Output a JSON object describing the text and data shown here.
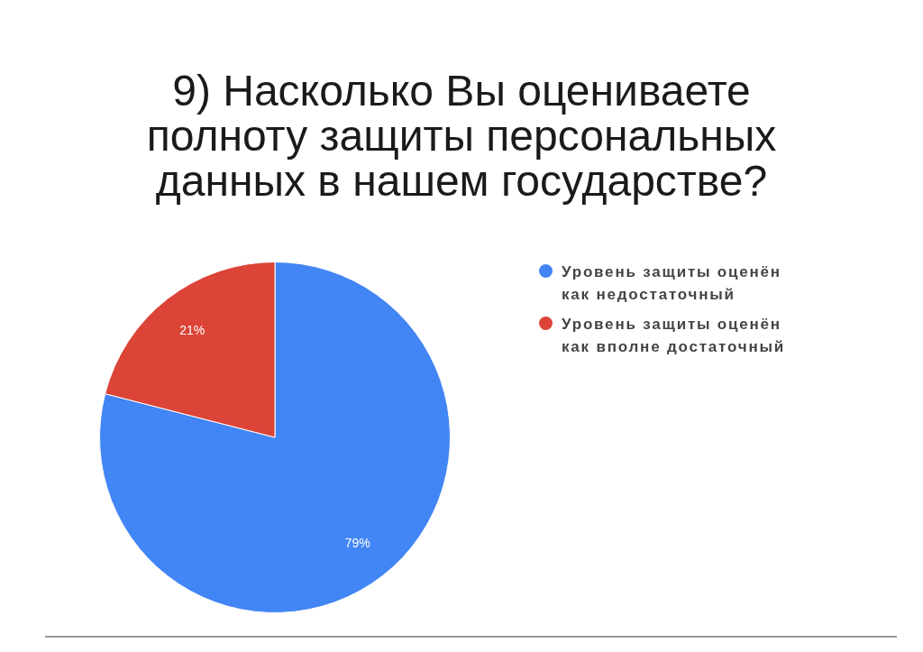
{
  "chart_data": {
    "type": "pie",
    "title": "9) Насколько Вы оцениваете\nполноту защиты персональных\nданных в нашем государстве?",
    "categories": [
      "Уровень защиты оценён как недостаточный",
      "Уровень защиты оценён как вполне достаточный"
    ],
    "values": [
      79,
      21
    ],
    "colors": [
      "#4285f4",
      "#db4437"
    ],
    "value_labels": [
      "79%",
      "21%"
    ],
    "legend": "top right"
  }
}
